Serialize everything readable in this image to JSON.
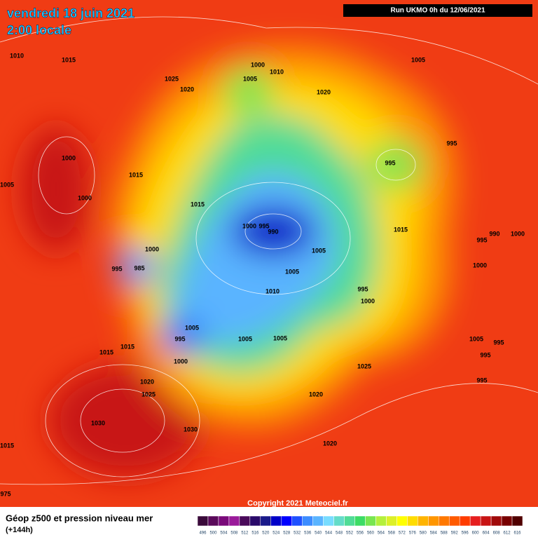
{
  "header": {
    "title": "vendredi 18 juin 2021",
    "subtitle": "2:00 locale",
    "run": "Run UKMO 0h du 12/06/2021"
  },
  "map": {
    "copyright": "Copyright 2021 Meteociel.fr",
    "isobar_labels": [
      1010,
      1015,
      1025,
      1020,
      1000,
      1010,
      1005,
      1020,
      1005,
      995,
      995,
      1000,
      1005,
      1000,
      1015,
      1015,
      1000,
      995,
      990,
      1015,
      990,
      1000,
      995,
      1005,
      1000,
      995,
      985,
      1005,
      1000,
      995,
      1000,
      1010,
      1005,
      995,
      1005,
      1005,
      1005,
      995,
      995,
      1015,
      1015,
      1000,
      1025,
      995,
      1020,
      1025,
      1020,
      1030,
      1030,
      1015,
      1020,
      975
    ]
  },
  "legend": {
    "title": "Géop z500 et pression niveau mer",
    "lead": "(+144h)",
    "scale": [
      496,
      500,
      504,
      508,
      512,
      516,
      520,
      524,
      528,
      532,
      536,
      540,
      544,
      548,
      552,
      556,
      560,
      564,
      568,
      572,
      576,
      580,
      584,
      588,
      592,
      596,
      600,
      604,
      608,
      612,
      616
    ],
    "colors": [
      "#3a0a3a",
      "#5a0a5a",
      "#7a0a7a",
      "#9a1a9a",
      "#4a0a5a",
      "#2a0a6a",
      "#1a1a8a",
      "#0000c8",
      "#0000ff",
      "#1e50ff",
      "#3c8cff",
      "#5ab4ff",
      "#78dcff",
      "#64dcc8",
      "#50dc96",
      "#3cdc64",
      "#78e650",
      "#b4f03c",
      "#dcf028",
      "#ffff00",
      "#ffdc00",
      "#ffb400",
      "#ff9600",
      "#ff7800",
      "#ff5a00",
      "#ff3c00",
      "#e61e1e",
      "#c81414",
      "#a00a0a",
      "#780000",
      "#500000"
    ]
  }
}
